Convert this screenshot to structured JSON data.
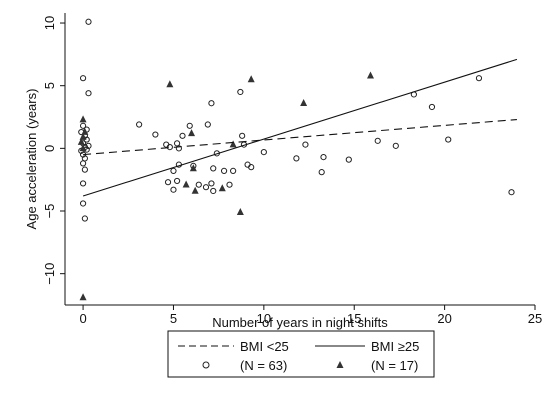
{
  "chart_data": {
    "type": "scatter",
    "xlabel": "Number of years in night shifts",
    "ylabel": "Age acceleration (years)",
    "xlim": [
      -1,
      25
    ],
    "ylim": [
      -12.5,
      10.8
    ],
    "x_ticks": [
      0,
      5,
      10,
      15,
      20,
      25
    ],
    "y_ticks": [
      -10,
      -5,
      0,
      5,
      10
    ],
    "grid": false,
    "legend_position": "bottom",
    "legend": {
      "line_low_label": "BMI <25",
      "line_high_label": "BMI ≥25",
      "marker_low_label": "(N = 63)",
      "marker_high_label": "(N = 17)"
    },
    "fit_lines": [
      {
        "group": "BMI <25",
        "style": "dashed",
        "x": [
          0,
          24
        ],
        "y": [
          -0.5,
          2.3
        ]
      },
      {
        "group": "BMI ≥25",
        "style": "solid",
        "x": [
          0,
          24
        ],
        "y": [
          -3.8,
          7.1
        ]
      }
    ],
    "series": [
      {
        "group": "BMI <25",
        "marker": "hollow-circle",
        "points": [
          [
            0.3,
            10.1
          ],
          [
            0.0,
            5.6
          ],
          [
            0.3,
            4.4
          ],
          [
            0.0,
            1.8
          ],
          [
            0.2,
            1.5
          ],
          [
            -0.1,
            1.3
          ],
          [
            0.1,
            1.0
          ],
          [
            0.2,
            0.7
          ],
          [
            0.0,
            0.4
          ],
          [
            0.1,
            0.1
          ],
          [
            -0.1,
            -0.2
          ],
          [
            0.2,
            -0.1
          ],
          [
            0.0,
            -0.5
          ],
          [
            0.1,
            -0.8
          ],
          [
            0.0,
            -1.2
          ],
          [
            0.1,
            -1.7
          ],
          [
            0.0,
            -2.8
          ],
          [
            0.0,
            -4.4
          ],
          [
            0.1,
            -5.6
          ],
          [
            3.1,
            1.9
          ],
          [
            4.0,
            1.1
          ],
          [
            4.6,
            0.3
          ],
          [
            4.8,
            0.1
          ],
          [
            5.0,
            -1.8
          ],
          [
            4.7,
            -2.7
          ],
          [
            5.0,
            -3.3
          ],
          [
            5.2,
            -2.6
          ],
          [
            5.3,
            -1.3
          ],
          [
            5.2,
            0.4
          ],
          [
            5.3,
            0.0
          ],
          [
            5.5,
            1.0
          ],
          [
            5.9,
            1.8
          ],
          [
            6.1,
            -1.4
          ],
          [
            6.4,
            -2.9
          ],
          [
            6.8,
            -3.1
          ],
          [
            6.9,
            1.9
          ],
          [
            7.1,
            3.6
          ],
          [
            7.1,
            -2.8
          ],
          [
            7.2,
            -3.4
          ],
          [
            7.2,
            -1.6
          ],
          [
            7.4,
            -0.4
          ],
          [
            7.8,
            -1.8
          ],
          [
            8.1,
            -2.9
          ],
          [
            8.3,
            -1.8
          ],
          [
            8.7,
            4.5
          ],
          [
            8.8,
            1.0
          ],
          [
            8.9,
            0.3
          ],
          [
            9.1,
            -1.3
          ],
          [
            9.3,
            -1.5
          ],
          [
            10.0,
            -0.3
          ],
          [
            11.8,
            -0.8
          ],
          [
            12.3,
            0.3
          ],
          [
            13.2,
            -1.9
          ],
          [
            13.3,
            -0.7
          ],
          [
            14.7,
            -0.9
          ],
          [
            16.3,
            0.6
          ],
          [
            17.3,
            0.2
          ],
          [
            18.3,
            4.3
          ],
          [
            19.3,
            3.3
          ],
          [
            20.2,
            0.7
          ],
          [
            21.9,
            5.6
          ],
          [
            23.7,
            -3.5
          ],
          [
            0.3,
            0.2
          ]
        ]
      },
      {
        "group": "BMI ≥25",
        "marker": "filled-triangle",
        "points": [
          [
            0.0,
            2.3
          ],
          [
            0.1,
            1.3
          ],
          [
            0.0,
            0.9
          ],
          [
            -0.1,
            0.5
          ],
          [
            0.0,
            0.0
          ],
          [
            0.0,
            -11.9
          ],
          [
            4.8,
            5.1
          ],
          [
            5.7,
            -2.9
          ],
          [
            6.0,
            1.2
          ],
          [
            6.1,
            -1.6
          ],
          [
            6.2,
            -3.4
          ],
          [
            7.7,
            -3.2
          ],
          [
            8.3,
            0.3
          ],
          [
            8.7,
            -5.1
          ],
          [
            9.3,
            5.5
          ],
          [
            12.2,
            3.6
          ],
          [
            15.9,
            5.8
          ]
        ]
      }
    ]
  }
}
